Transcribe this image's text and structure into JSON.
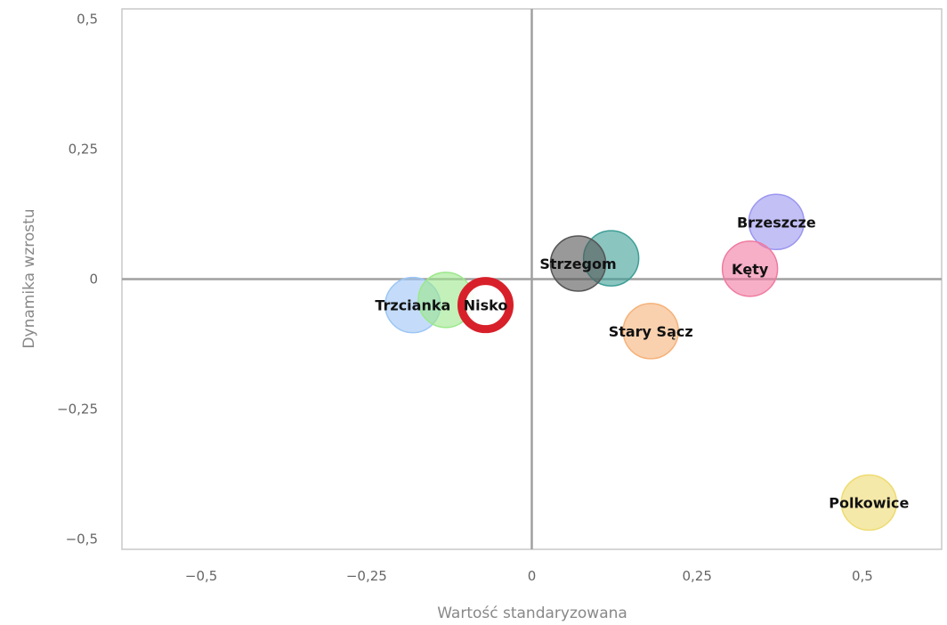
{
  "chart_data": {
    "type": "scatter",
    "title": "",
    "xlabel": "Wartość standaryzowana",
    "ylabel": "Dynamika wzrostu",
    "xlim": [
      -0.62,
      0.62
    ],
    "ylim": [
      -0.52,
      0.52
    ],
    "x_ticks": [
      -0.5,
      -0.25,
      0,
      0.25,
      0.5
    ],
    "y_ticks": [
      -0.5,
      -0.25,
      0,
      0.25,
      0.5
    ],
    "x_tick_labels": [
      "−0,5",
      "−0,25",
      "0",
      "0,25",
      "0,5"
    ],
    "y_tick_labels": [
      "−0,5",
      "−0,25",
      "0",
      "0,25",
      "0,5"
    ],
    "grid": false,
    "points": [
      {
        "label": "",
        "x": 0.12,
        "y": 0.04,
        "color": "#3d9e96",
        "highlight": false
      },
      {
        "label": "Strzegom",
        "x": 0.07,
        "y": 0.03,
        "color": "#555555",
        "highlight": false
      },
      {
        "label": "Brzeszcze",
        "x": 0.37,
        "y": 0.11,
        "color": "#9b96f0",
        "highlight": false
      },
      {
        "label": "Kęty",
        "x": 0.33,
        "y": 0.02,
        "color": "#f07aa0",
        "highlight": false
      },
      {
        "label": "Stary Sącz",
        "x": 0.18,
        "y": -0.1,
        "color": "#f5b27a",
        "highlight": false
      },
      {
        "label": "Polkowice",
        "x": 0.51,
        "y": -0.43,
        "color": "#eedb70",
        "highlight": false
      },
      {
        "label": "Trzcianka",
        "x": -0.18,
        "y": -0.05,
        "color": "#9cc5f5",
        "highlight": false
      },
      {
        "label": "",
        "x": -0.13,
        "y": -0.04,
        "color": "#9be88a",
        "highlight": false
      },
      {
        "label": "Nisko",
        "x": -0.07,
        "y": -0.05,
        "color": "#d8202a",
        "highlight": true
      }
    ]
  }
}
